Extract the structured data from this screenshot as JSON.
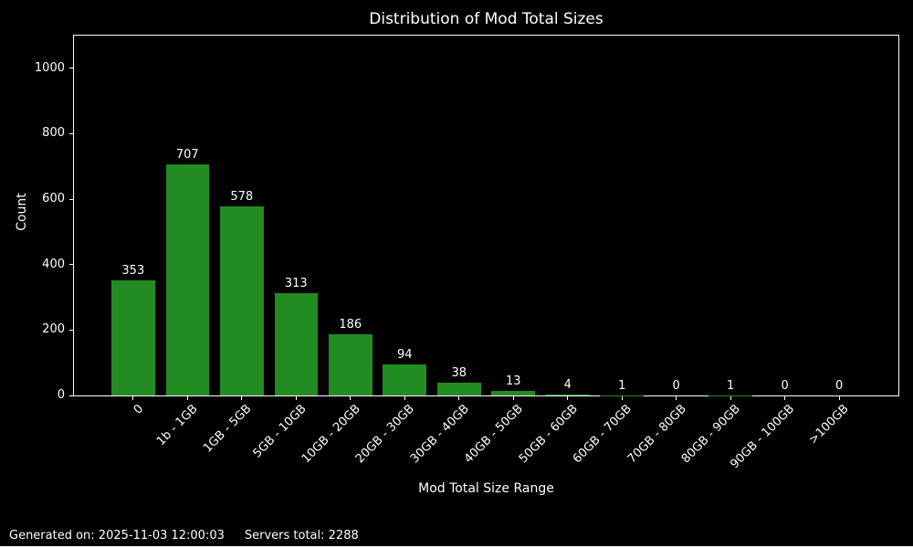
{
  "figure": {
    "background": "#000000",
    "text_color": "#ffffff"
  },
  "chart_data": {
    "type": "bar",
    "title": "Distribution of Mod Total Sizes",
    "xlabel": "Mod Total Size Range",
    "ylabel": "Count",
    "categories": [
      "0",
      "1b - 1GB",
      "1GB - 5GB",
      "5GB - 10GB",
      "10GB - 20GB",
      "20GB - 30GB",
      "30GB - 40GB",
      "40GB - 50GB",
      "50GB - 60GB",
      "60GB - 70GB",
      "70GB - 80GB",
      "80GB - 90GB",
      "90GB - 100GB",
      ">100GB"
    ],
    "values": [
      353,
      707,
      578,
      313,
      186,
      94,
      38,
      13,
      4,
      1,
      0,
      1,
      0,
      0
    ],
    "yticks": [
      0,
      200,
      400,
      600,
      800,
      1000
    ],
    "ylim": [
      0,
      1100
    ],
    "bar_color": "#228B22",
    "axis_color": "#ffffff",
    "grid": "off",
    "legend": "none",
    "bar_value_labels": true,
    "xtick_rotation": 45
  },
  "footer": {
    "generated_on": "Generated on: 2025-11-03 12:00:03",
    "servers_total": "Servers total: 2288"
  }
}
